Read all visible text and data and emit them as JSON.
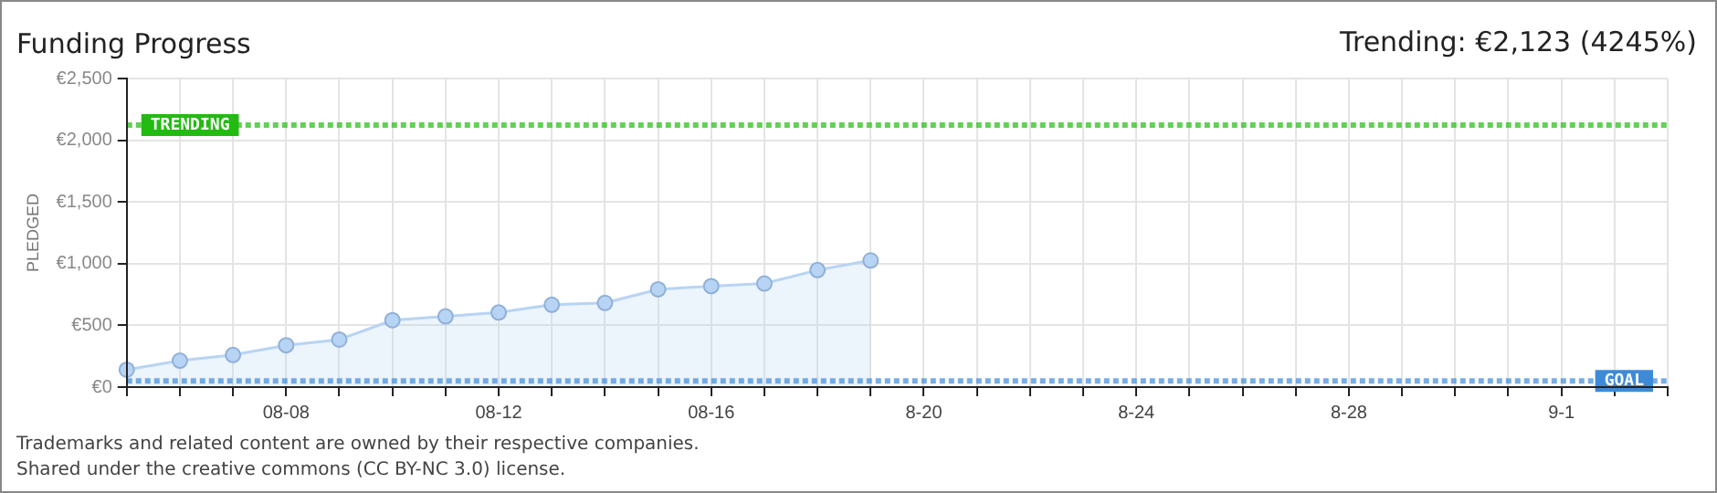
{
  "chart_data": {
    "type": "area",
    "title": "Funding Progress",
    "annotations": [
      "Trending: €2,123 (4245%)",
      "Trademarks and related content are owned by their respective companies.",
      "Shared under the creative commons (CC BY-NC 3.0) license."
    ],
    "ylabel": "PLEDGED",
    "categories": [
      null,
      null,
      null,
      "08-08",
      null,
      null,
      null,
      "08-12",
      null,
      null,
      null,
      "08-16",
      null,
      null,
      null,
      "8-20",
      null,
      null,
      null,
      "8-24",
      null,
      null,
      null,
      "8-28",
      null,
      null,
      null,
      "9-1",
      null,
      null
    ],
    "series": [
      {
        "color": "#b8d4f4",
        "values": [
          141,
          214,
          260,
          339,
          385,
          542,
          573,
          604,
          667,
          682,
          792,
          818,
          839,
          948,
          1026,
          null,
          null,
          null,
          null,
          null,
          null,
          null,
          null,
          null,
          null,
          null,
          null,
          null,
          null,
          null
        ]
      }
    ],
    "ylim": [
      0,
      2500
    ],
    "yticks": [
      {
        "value": 0,
        "label": "€0"
      },
      {
        "value": 500,
        "label": "€500"
      },
      {
        "value": 1000,
        "label": "€1,000"
      },
      {
        "value": 1500,
        "label": "€1,500"
      },
      {
        "value": 2000,
        "label": "€2,000"
      },
      {
        "value": 2500,
        "label": "€2,500"
      }
    ],
    "ref_lines": [
      {
        "axis": "y",
        "value": 2123,
        "label": "TRENDING",
        "color": "#22bb11",
        "line_style": "dotted"
      },
      {
        "axis": "y",
        "value": 50,
        "label": "GOAL",
        "color": "#3d8ad8",
        "line_style": "dotted"
      }
    ],
    "grid": true,
    "legend": false,
    "marker": "circle"
  }
}
